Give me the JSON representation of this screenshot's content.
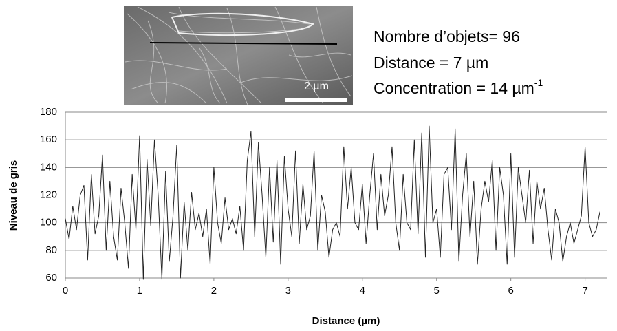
{
  "chart_data": {
    "type": "line",
    "xlabel": "Distance (µm)",
    "ylabel": "Niveau de gris",
    "annotations": [
      {
        "text": "Nombre d’objets= 96"
      },
      {
        "text": "Distance = 7 µm"
      },
      {
        "text": "Concentration = 14 µm",
        "sup": "-1"
      }
    ],
    "inset_scale_label": "2 µm",
    "color": "#222222",
    "grid": true,
    "xlim": [
      0,
      7.3
    ],
    "xticks": [
      0,
      1,
      2,
      3,
      4,
      5,
      6,
      7
    ],
    "ylim": [
      60,
      180
    ],
    "yticks": [
      60,
      80,
      100,
      120,
      140,
      160,
      180
    ],
    "x": [
      0,
      0.05,
      0.1,
      0.15,
      0.2,
      0.25,
      0.3,
      0.35,
      0.4,
      0.45,
      0.5,
      0.55,
      0.6,
      0.65,
      0.7,
      0.75,
      0.8,
      0.85,
      0.9,
      0.95,
      1,
      1.05,
      1.1,
      1.15,
      1.2,
      1.25,
      1.3,
      1.35,
      1.4,
      1.45,
      1.5,
      1.55,
      1.6,
      1.65,
      1.7,
      1.75,
      1.8,
      1.85,
      1.9,
      1.95,
      2,
      2.05,
      2.1,
      2.15,
      2.2,
      2.25,
      2.3,
      2.35,
      2.4,
      2.45,
      2.5,
      2.55,
      2.6,
      2.65,
      2.7,
      2.75,
      2.8,
      2.85,
      2.9,
      2.95,
      3,
      3.05,
      3.1,
      3.15,
      3.2,
      3.25,
      3.3,
      3.35,
      3.4,
      3.45,
      3.5,
      3.55,
      3.6,
      3.65,
      3.7,
      3.75,
      3.8,
      3.85,
      3.9,
      3.95,
      4,
      4.05,
      4.1,
      4.15,
      4.2,
      4.25,
      4.3,
      4.35,
      4.4,
      4.45,
      4.5,
      4.55,
      4.6,
      4.65,
      4.7,
      4.75,
      4.8,
      4.85,
      4.9,
      4.95,
      5,
      5.05,
      5.1,
      5.15,
      5.2,
      5.25,
      5.3,
      5.35,
      5.4,
      5.45,
      5.5,
      5.55,
      5.6,
      5.65,
      5.7,
      5.75,
      5.8,
      5.85,
      5.9,
      5.95,
      6,
      6.05,
      6.1,
      6.15,
      6.2,
      6.25,
      6.3,
      6.35,
      6.4,
      6.45,
      6.5,
      6.55,
      6.6,
      6.65,
      6.7,
      6.75,
      6.8,
      6.85,
      6.9,
      6.95,
      7,
      7.05,
      7.1,
      7.15,
      7.2
    ],
    "values": [
      103,
      88,
      112,
      95,
      120,
      127,
      73,
      135,
      92,
      105,
      149,
      80,
      130,
      90,
      73,
      125,
      100,
      67,
      135,
      95,
      163,
      59,
      146,
      98,
      160,
      120,
      59,
      137,
      72,
      105,
      156,
      60,
      115,
      80,
      122,
      95,
      107,
      90,
      110,
      70,
      140,
      100,
      85,
      118,
      95,
      103,
      92,
      112,
      80,
      145,
      166,
      90,
      158,
      120,
      75,
      140,
      86,
      145,
      70,
      148,
      110,
      90,
      152,
      85,
      128,
      95,
      105,
      152,
      80,
      120,
      108,
      75,
      95,
      100,
      90,
      155,
      110,
      140,
      100,
      95,
      128,
      85,
      120,
      150,
      95,
      135,
      105,
      120,
      155,
      100,
      80,
      135,
      100,
      95,
      160,
      92,
      165,
      75,
      170,
      100,
      110,
      75,
      135,
      140,
      95,
      168,
      72,
      120,
      150,
      90,
      130,
      70,
      110,
      130,
      115,
      145,
      80,
      140,
      120,
      70,
      150,
      75,
      140,
      120,
      100,
      138,
      85,
      130,
      110,
      125,
      95,
      73,
      110,
      100,
      72,
      90,
      100,
      85,
      95,
      105,
      155,
      100,
      90,
      95,
      108
    ]
  }
}
